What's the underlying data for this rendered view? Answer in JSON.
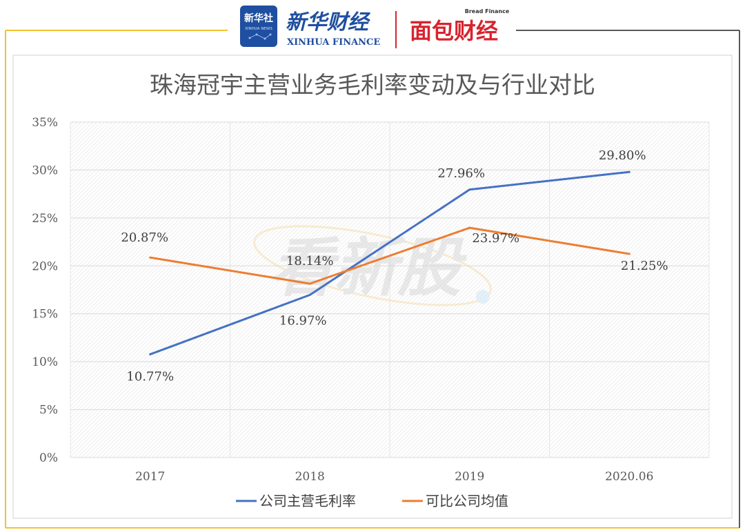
{
  "header": {
    "xinhua_badge_text": "新华社",
    "xinhua_badge_sub": "XINHUA NEWS",
    "xinhua_finance_cn": "新华财经",
    "xinhua_finance_en": "XINHUA FINANCE",
    "bread_finance_cn": "面包财经",
    "bread_finance_en": "Bread Finance"
  },
  "watermark_text": "看新股",
  "colors": {
    "frame_gold": "#f2c230",
    "company_series": "#4472c4",
    "industry_series": "#ed7d31",
    "brand_red": "#d9232e",
    "brand_blue": "#1f4fa0"
  },
  "chart_data": {
    "type": "line",
    "title": "珠海冠宇主营业务毛利率变动及与行业对比",
    "categories": [
      "2017",
      "2018",
      "2019",
      "2020.06"
    ],
    "ylim": [
      0,
      35
    ],
    "yticks": [
      0,
      5,
      10,
      15,
      20,
      25,
      30,
      35
    ],
    "ytick_labels": [
      "0%",
      "5%",
      "10%",
      "15%",
      "20%",
      "25%",
      "30%",
      "35%"
    ],
    "grid": true,
    "legend_position": "bottom",
    "series": [
      {
        "name": "公司主营毛利率",
        "color": "#4472c4",
        "values": [
          10.77,
          16.97,
          27.96,
          29.8
        ],
        "labels": [
          "10.77%",
          "16.97%",
          "27.96%",
          "29.80%"
        ]
      },
      {
        "name": "可比公司均值",
        "color": "#ed7d31",
        "values": [
          20.87,
          18.14,
          23.97,
          21.25
        ],
        "labels": [
          "20.87%",
          "18.14%",
          "23.97%",
          "21.25%"
        ]
      }
    ]
  }
}
